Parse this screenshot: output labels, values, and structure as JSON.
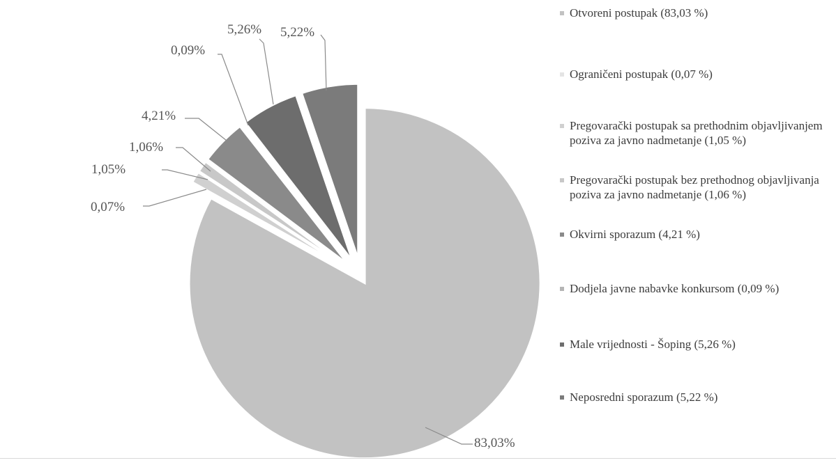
{
  "chart_data": {
    "type": "pie",
    "title": "",
    "slices": [
      {
        "value": 83.03,
        "label": "83,03%",
        "color": "#c2c2c2"
      },
      {
        "value": 0.07,
        "label": "0,07%",
        "color": "#e4e4e4"
      },
      {
        "value": 1.05,
        "label": "1,05%",
        "color": "#d0d0d0"
      },
      {
        "value": 1.06,
        "label": "1,06%",
        "color": "#c8c8c8"
      },
      {
        "value": 4.21,
        "label": "4,21%",
        "color": "#8a8a8a"
      },
      {
        "value": 0.09,
        "label": "0,09%",
        "color": "#b5b5b5"
      },
      {
        "value": 5.26,
        "label": "5,26%",
        "color": "#6d6d6d"
      },
      {
        "value": 5.22,
        "label": "5,22%",
        "color": "#7b7b7b"
      }
    ],
    "legend": [
      {
        "text": "Otvoreni postupak (83,03 %)",
        "color": "#c2c2c2"
      },
      {
        "text": "Ograničeni postupak (0,07 %)",
        "color": "#e4e4e4"
      },
      {
        "text": "Pregovarački postupak sa prethodnim objavljivanjem poziva za javno nadmetanje (1,05 %)",
        "color": "#d0d0d0"
      },
      {
        "text": "Pregovarački postupak bez prethodnog objavljivanja poziva za javno nadmetanje (1,06 %)",
        "color": "#c8c8c8"
      },
      {
        "text": "Okvirni sporazum (4,21 %)",
        "color": "#8a8a8a"
      },
      {
        "text": "Dodjela javne nabavke konkursom (0,09 %)",
        "color": "#b5b5b5"
      },
      {
        "text": "Male vrijednosti - Šoping (5,26 %)",
        "color": "#6d6d6d"
      },
      {
        "text": "Neposredni sporazum (5,22 %)",
        "color": "#7b7b7b"
      }
    ],
    "legend_position": "right"
  }
}
